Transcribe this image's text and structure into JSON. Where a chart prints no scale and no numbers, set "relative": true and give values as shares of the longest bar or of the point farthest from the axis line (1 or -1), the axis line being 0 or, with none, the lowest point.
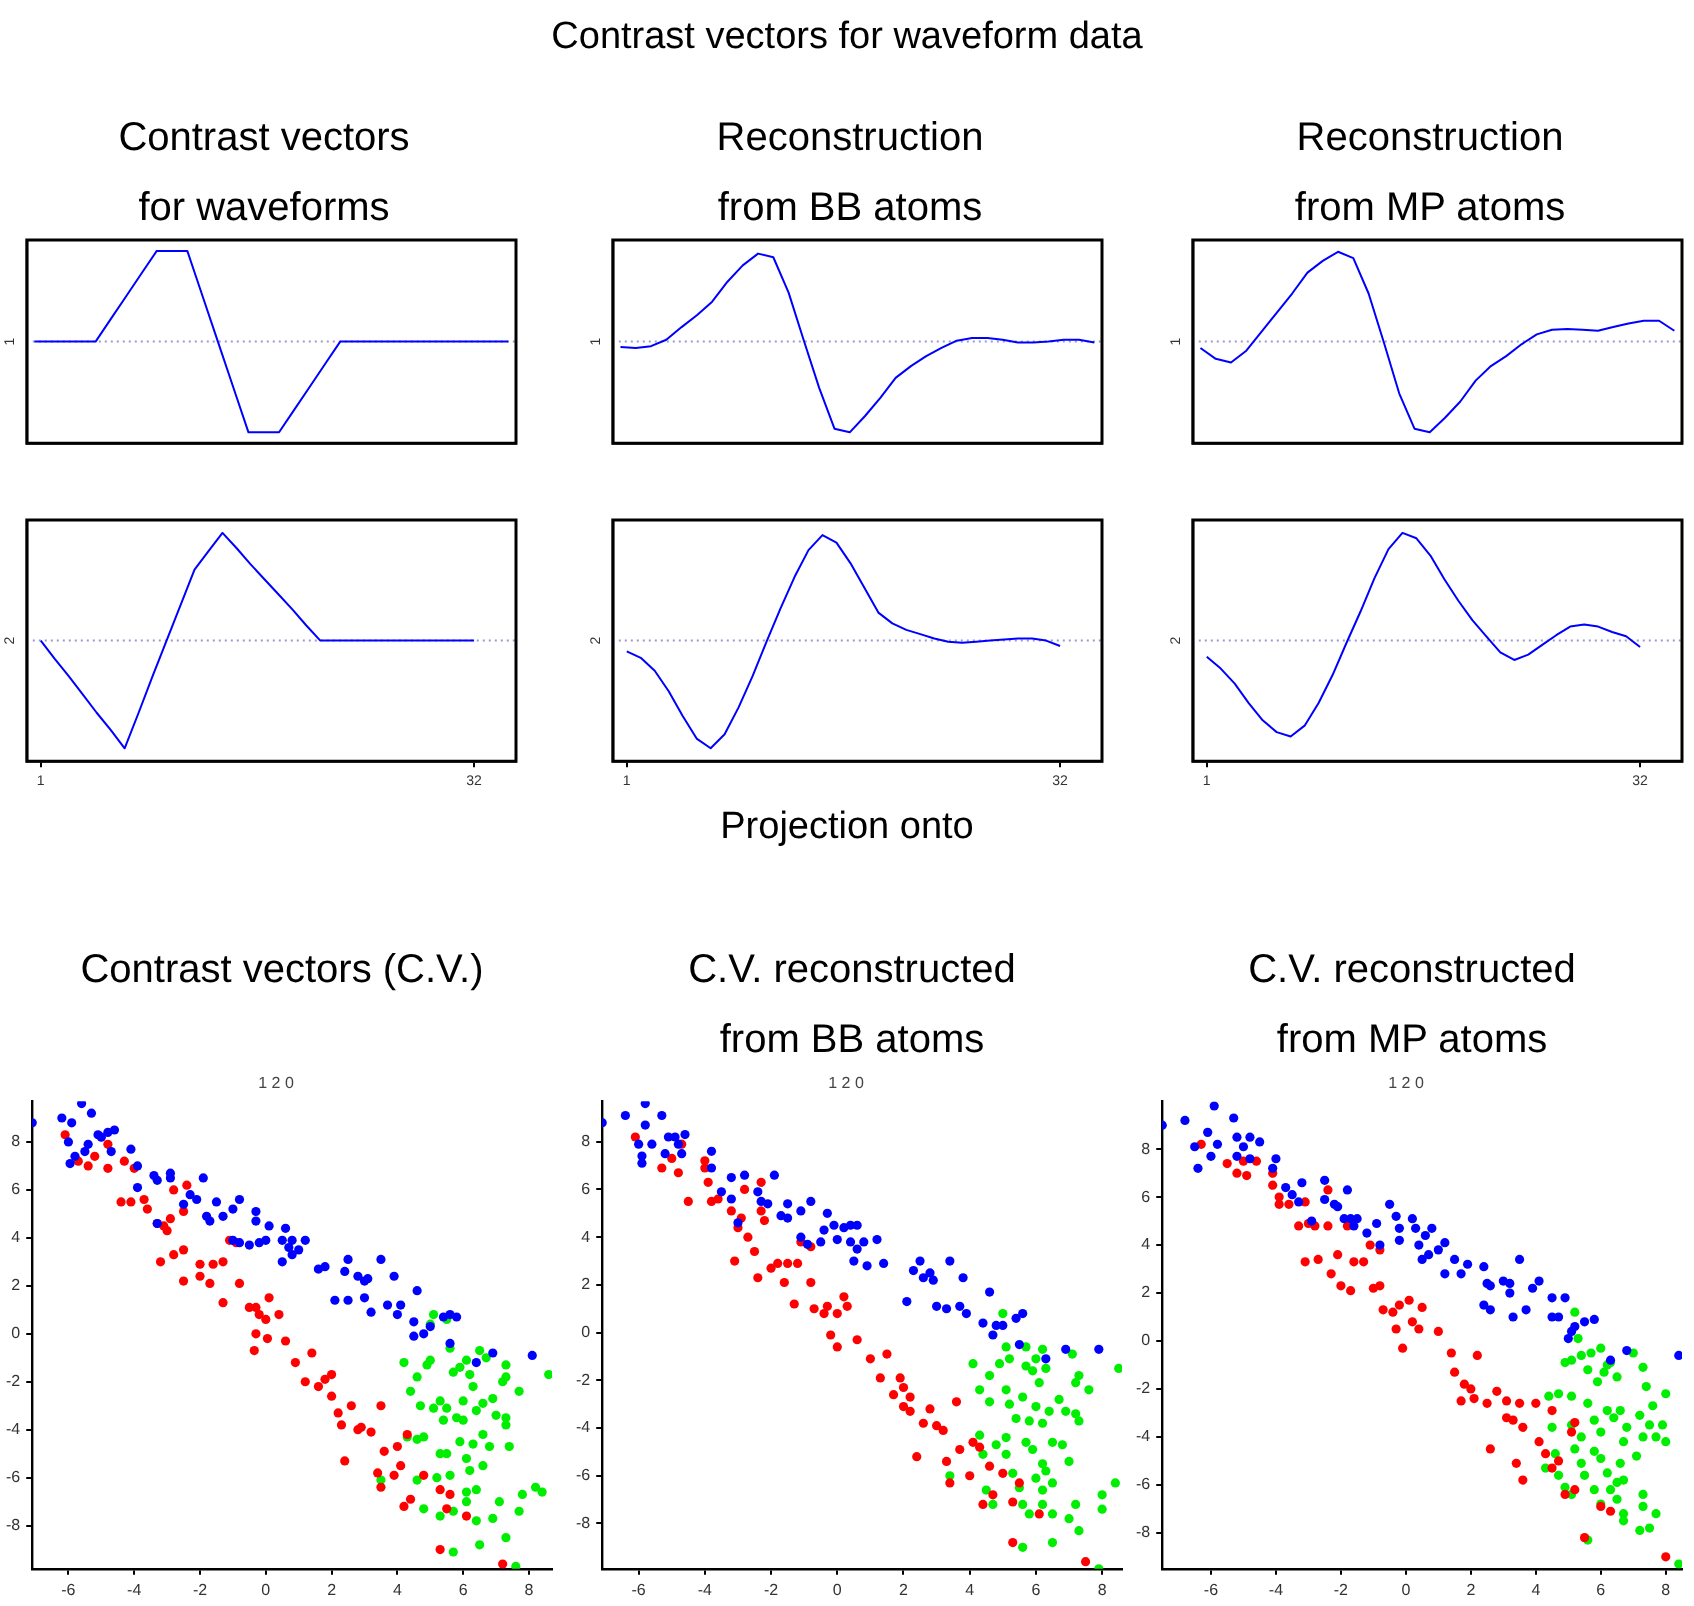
{
  "chart_data": [
    {
      "type": "line",
      "title": "Contrast vectors for waveforms",
      "annotations": [
        "Contrast vectors for waveform data"
      ],
      "ylabel": "1",
      "relative": true,
      "ref_lines": [
        {
          "axis": "y",
          "value": 0,
          "color": "#9a9ad0",
          "line_style": "dotted"
        }
      ],
      "categories": [
        null,
        null,
        null,
        null,
        null,
        null,
        null,
        null,
        null,
        null,
        null,
        null,
        null,
        null,
        null,
        null,
        null,
        null,
        null,
        null,
        null,
        null,
        null,
        null,
        null,
        null,
        null,
        null,
        null,
        null,
        null,
        null
      ],
      "series": [
        {
          "color": "#0000ff",
          "values": [
            0,
            0,
            0,
            0,
            0,
            0.25,
            0.5,
            0.75,
            1,
            1,
            1,
            0.5,
            0,
            -0.5,
            -1,
            -1,
            -1,
            -0.75,
            -0.5,
            -0.25,
            0,
            0,
            0,
            0,
            0,
            0,
            0,
            0,
            0,
            0,
            0,
            0
          ]
        }
      ]
    },
    {
      "type": "line",
      "title": "Reconstruction from BB atoms",
      "ylabel": "1",
      "relative": true,
      "ref_lines": [
        {
          "axis": "y",
          "value": 0,
          "color": "#9a9ad0",
          "line_style": "dotted"
        }
      ],
      "categories": [
        null,
        null,
        null,
        null,
        null,
        null,
        null,
        null,
        null,
        null,
        null,
        null,
        null,
        null,
        null,
        null,
        null,
        null,
        null,
        null,
        null,
        null,
        null,
        null,
        null,
        null,
        null,
        null,
        null,
        null,
        null,
        null
      ],
      "series": [
        {
          "color": "#0000ff",
          "values": [
            -0.06,
            -0.07,
            -0.05,
            0.02,
            0.16,
            0.29,
            0.44,
            0.66,
            0.84,
            0.97,
            0.93,
            0.54,
            0.01,
            -0.51,
            -0.96,
            -1,
            -0.82,
            -0.62,
            -0.4,
            -0.27,
            -0.16,
            -0.07,
            0.01,
            0.04,
            0.04,
            0.02,
            -0.01,
            -0.01,
            0,
            0.02,
            0.02,
            -0.01
          ]
        }
      ]
    },
    {
      "type": "line",
      "title": "Reconstruction from MP atoms",
      "ylabel": "1",
      "relative": true,
      "ref_lines": [
        {
          "axis": "y",
          "value": 0,
          "color": "#9a9ad0",
          "line_style": "dotted"
        }
      ],
      "categories": [
        null,
        null,
        null,
        null,
        null,
        null,
        null,
        null,
        null,
        null,
        null,
        null,
        null,
        null,
        null,
        null,
        null,
        null,
        null,
        null,
        null,
        null,
        null,
        null,
        null,
        null,
        null,
        null,
        null,
        null,
        null,
        null
      ],
      "series": [
        {
          "color": "#0000ff",
          "values": [
            -0.07,
            -0.19,
            -0.23,
            -0.1,
            0.11,
            0.32,
            0.53,
            0.76,
            0.89,
            0.99,
            0.92,
            0.53,
            -0.01,
            -0.57,
            -0.96,
            -1,
            -0.84,
            -0.66,
            -0.43,
            -0.27,
            -0.16,
            -0.03,
            0.08,
            0.13,
            0.14,
            0.13,
            0.12,
            0.16,
            0.2,
            0.23,
            0.23,
            0.12
          ]
        }
      ]
    },
    {
      "type": "line",
      "ylabel": "2",
      "relative": true,
      "tick_labels": "x",
      "xlim": [
        0,
        35
      ],
      "xticks": [
        1,
        32
      ],
      "ref_lines": [
        {
          "axis": "y",
          "value": 0,
          "color": "#9a9ad0",
          "line_style": "dotted"
        }
      ],
      "x": [
        1,
        2,
        3,
        4,
        5,
        6,
        7,
        8,
        9,
        10,
        11,
        12,
        13,
        14,
        15,
        16,
        17,
        18,
        19,
        20,
        21,
        22,
        23,
        24,
        25,
        26,
        27,
        28,
        29,
        30,
        31,
        32
      ],
      "series": [
        {
          "color": "#0000ff",
          "values": [
            0,
            -0.17,
            -0.33,
            -0.5,
            -0.67,
            -0.83,
            -1,
            -0.67,
            -0.33,
            0,
            0.33,
            0.66,
            0.83,
            1,
            0.86,
            0.71,
            0.57,
            0.43,
            0.29,
            0.14,
            0,
            0,
            0,
            0,
            0,
            0,
            0,
            0,
            0,
            0,
            0,
            0
          ]
        }
      ]
    },
    {
      "type": "line",
      "ylabel": "2",
      "relative": true,
      "tick_labels": "x",
      "xlim": [
        0,
        35
      ],
      "xticks": [
        1,
        32
      ],
      "ref_lines": [
        {
          "axis": "y",
          "value": 0,
          "color": "#9a9ad0",
          "line_style": "dotted"
        }
      ],
      "x": [
        1,
        2,
        3,
        4,
        5,
        6,
        7,
        8,
        9,
        10,
        11,
        12,
        13,
        14,
        15,
        16,
        17,
        18,
        19,
        20,
        21,
        22,
        23,
        24,
        25,
        26,
        27,
        28,
        29,
        30,
        31,
        32
      ],
      "series": [
        {
          "color": "#0000ff",
          "values": [
            -0.1,
            -0.16,
            -0.28,
            -0.47,
            -0.7,
            -0.91,
            -1,
            -0.87,
            -0.62,
            -0.33,
            -0.01,
            0.3,
            0.59,
            0.84,
            0.98,
            0.91,
            0.72,
            0.49,
            0.26,
            0.16,
            0.1,
            0.06,
            0.02,
            -0.01,
            -0.02,
            -0.01,
            0,
            0.01,
            0.02,
            0.02,
            0,
            -0.05
          ]
        }
      ]
    },
    {
      "type": "line",
      "ylabel": "2",
      "relative": true,
      "tick_labels": "x",
      "xlim": [
        0,
        35
      ],
      "xticks": [
        1,
        32
      ],
      "ref_lines": [
        {
          "axis": "y",
          "value": 0,
          "color": "#9a9ad0",
          "line_style": "dotted"
        }
      ],
      "x": [
        1,
        2,
        3,
        4,
        5,
        6,
        7,
        8,
        9,
        10,
        11,
        12,
        13,
        14,
        15,
        16,
        17,
        18,
        19,
        20,
        21,
        22,
        23,
        24,
        25,
        26,
        27,
        28,
        29,
        30,
        31,
        32
      ],
      "series": [
        {
          "color": "#0000ff",
          "values": [
            -0.15,
            -0.26,
            -0.4,
            -0.58,
            -0.74,
            -0.85,
            -0.89,
            -0.79,
            -0.58,
            -0.32,
            -0.02,
            0.27,
            0.58,
            0.85,
            1,
            0.95,
            0.79,
            0.57,
            0.37,
            0.19,
            0.04,
            -0.11,
            -0.18,
            -0.13,
            -0.04,
            0.05,
            0.13,
            0.15,
            0.13,
            0.08,
            0.04,
            -0.06
          ]
        }
      ]
    },
    {
      "type": "scatter",
      "title": "Contrast vectors (C.V.)",
      "subtitle": "1 2 0",
      "annotations": [
        "Projection onto"
      ],
      "marker": "circle",
      "xlim": [
        -7.1,
        8.7
      ],
      "ylim": [
        -9.8,
        9.7
      ],
      "xticks": [
        -6,
        -4,
        -2,
        0,
        2,
        4,
        6,
        8
      ],
      "yticks": [
        -8,
        -6,
        -4,
        -2,
        0,
        2,
        4,
        6,
        8
      ],
      "series": [
        {
          "color": "#0000ff",
          "x": [
            -7.1,
            -6.2,
            -5.9,
            -6,
            -5.95,
            -5.8,
            -5.6,
            -5.5,
            -5.4,
            -5.3,
            -5.1,
            -5,
            -4.8,
            -4.6,
            -4.7,
            -4.1,
            -3.9,
            -3.9,
            -3.4,
            -3.3,
            -2.9,
            -2.9,
            -3.3,
            -2.5,
            -2.3,
            -2.1,
            -1.9,
            -1.8,
            -1.7,
            -1.5,
            -1.3,
            -1,
            -0.8,
            -1,
            -0.8,
            -0.5,
            -0.3,
            -0.3,
            -0.2,
            0,
            0.1,
            0.5,
            0.6,
            0.7,
            0.8,
            0.8,
            0.5,
            1,
            1.2,
            1.6,
            1.8,
            2.1,
            2.4,
            2.5,
            2.5,
            2.8,
            3,
            3.1,
            3,
            3.2,
            3.5,
            3.7,
            3.9,
            4,
            4.1,
            4.6,
            4.5,
            4.5,
            4.8,
            5,
            5.4,
            5.6,
            5.8,
            5.6,
            6.4,
            6.9,
            8.1
          ],
          "values": [
            8.8,
            9,
            8.8,
            8,
            7.1,
            7.4,
            9.6,
            7.6,
            7.9,
            9.2,
            8.3,
            8.2,
            8.4,
            8.5,
            7.6,
            7.7,
            7,
            6.1,
            6.6,
            6.4,
            6.7,
            6.5,
            4.6,
            5.4,
            5.8,
            5.6,
            6.5,
            4.9,
            4.7,
            5.5,
            4.9,
            5.2,
            5.6,
            3.9,
            3.8,
            3.7,
            4.7,
            5.1,
            3.8,
            3.9,
            4.5,
            3.9,
            4.4,
            3.6,
            3.9,
            3.3,
            3,
            3.5,
            3.9,
            2.7,
            2.8,
            1.4,
            2.6,
            3.1,
            1.4,
            2.4,
            2.2,
            2.3,
            1.5,
            0.9,
            3.1,
            1.2,
            2.4,
            0.8,
            1.2,
            1.8,
            0.5,
            -0.1,
            0,
            0.3,
            0.7,
            0.8,
            0.7,
            -0.4,
            -1.2,
            -0.8,
            -0.9
          ]
        },
        {
          "color": "#ff0000",
          "x": [
            -6.1,
            -5.7,
            -5.4,
            -5.2,
            -4.8,
            -4.8,
            -4.3,
            -4,
            -4.4,
            -4.1,
            -3.7,
            -3.6,
            -3.3,
            -3.1,
            -2.9,
            -3,
            -2.8,
            -2.4,
            -2.5,
            -2.8,
            -2.5,
            -3.2,
            -2.5,
            -2,
            -2,
            -1.7,
            -1.6,
            -1.3,
            -1.3,
            -1.1,
            -0.8,
            -0.9,
            -0.5,
            -0.3,
            -0.2,
            -0.3,
            -0.35,
            0,
            0.05,
            0.1,
            0.4,
            0.6,
            0.9,
            1.2,
            1.4,
            1.6,
            1.8,
            2,
            2,
            2.2,
            2.3,
            2.4,
            2.6,
            2.8,
            2.9,
            3.2,
            3.4,
            3.5,
            3.5,
            3.6,
            3.9,
            4,
            4.1,
            4.2,
            4.3,
            4.4,
            4.8,
            5.3,
            5.5,
            5.6,
            5.3,
            6.1,
            7.2
          ],
          "values": [
            8.3,
            7.2,
            7,
            7.4,
            7.9,
            6.9,
            7.2,
            6.9,
            5.5,
            5.5,
            5.6,
            5.2,
            4.6,
            4.5,
            4.8,
            4.3,
            6,
            6.2,
            5.1,
            3.3,
            3.5,
            3,
            2.2,
            2.9,
            2.4,
            2.1,
            2.9,
            3,
            1.3,
            3.9,
            2.1,
            3.8,
            1.1,
            1.1,
            0.8,
            0,
            -0.7,
            0.6,
            -0.2,
            1.5,
            0.8,
            -0.3,
            -1.2,
            -2,
            -0.8,
            -2.2,
            -1.9,
            -1.7,
            -2.6,
            -3.3,
            -3.8,
            -5.3,
            -3,
            -4,
            -3.9,
            -4.1,
            -5.8,
            -3,
            -6.4,
            -4.9,
            -5.9,
            -4.7,
            -5.5,
            -7.2,
            -4.2,
            -6.9,
            -5.9,
            -6.5,
            -7.3,
            -6.7,
            -9,
            -7.6,
            -9.6
          ]
        },
        {
          "color": "#00ee00",
          "x": [
            5.1,
            5,
            5.5,
            4.2,
            4.9,
            5,
            5.6,
            5.7,
            5.9,
            6.1,
            6.2,
            6.5,
            6.7,
            7.3,
            7.2,
            7.3,
            7.7,
            8.6,
            4.4,
            4.6,
            4.7,
            5.1,
            5.3,
            5.4,
            5.5,
            5.8,
            6,
            6,
            6.3,
            6.4,
            6.6,
            6.9,
            7,
            7.3,
            7.3,
            4.3,
            4.6,
            4.8,
            5.3,
            5.5,
            5.9,
            6.1,
            6.3,
            6.6,
            6.8,
            7.4,
            3.5,
            4.6,
            5.2,
            5.6,
            6.1,
            6.2,
            6.4,
            6.6,
            4.8,
            5.3,
            5.7,
            6.1,
            6.4,
            6.9,
            7.1,
            7.7,
            8.2,
            8.4,
            7.8,
            7.3,
            6.5,
            5.7,
            7.6
          ],
          "values": [
            0.8,
            0.4,
            0.6,
            -1.2,
            -1.3,
            -1.1,
            -0.6,
            -1.6,
            -1.4,
            -1.1,
            -1.7,
            -0.7,
            -1,
            -1.3,
            -2,
            -1.8,
            -2.4,
            -1.7,
            -2.4,
            -1.8,
            -3,
            -3.1,
            -2.8,
            -3.6,
            -3.1,
            -3.5,
            -3.6,
            -2.8,
            -2.2,
            -3.2,
            -2.9,
            -2.7,
            -3.4,
            -3.5,
            -3.8,
            -4.3,
            -4.4,
            -4.3,
            -5,
            -5,
            -4.5,
            -5.2,
            -4.6,
            -4.2,
            -4.7,
            -4.7,
            -6.1,
            -6.1,
            -6,
            -5.9,
            -6.6,
            -5.7,
            -6.5,
            -5.5,
            -7.3,
            -7.6,
            -7.4,
            -7,
            -7.8,
            -7.7,
            -7,
            -7.4,
            -6.4,
            -6.6,
            -6.7,
            -8.5,
            -8.8,
            -9.1,
            -9.7
          ]
        }
      ]
    },
    {
      "type": "scatter",
      "title": "C.V. reconstructed from BB atoms",
      "subtitle": "1 2 0",
      "marker": "circle",
      "xlim": [
        -7.1,
        8.6
      ],
      "ylim": [
        -9.9,
        9.7
      ],
      "xticks": [
        -6,
        -4,
        -2,
        0,
        2,
        4,
        6,
        8
      ],
      "yticks": [
        -8,
        -6,
        -4,
        -2,
        0,
        2,
        4,
        6,
        8
      ],
      "series": [
        {
          "color": "#0000ff",
          "x": [
            -7.1,
            -6.4,
            -6,
            -5.9,
            -5.9,
            -5.8,
            -5.8,
            -5.6,
            -5.3,
            -5.1,
            -5.2,
            -4.9,
            -4.8,
            -4.6,
            -4.7,
            -3.8,
            -3.8,
            -3.5,
            -3.2,
            -3.2,
            -3,
            -2.8,
            -2.4,
            -2.3,
            -2.1,
            -1.9,
            -1.7,
            -1.5,
            -1.5,
            -1.1,
            -0.8,
            -1.1,
            -0.9,
            -0.5,
            -0.4,
            -0.3,
            -0.1,
            0,
            0.2,
            0.4,
            0.4,
            0.6,
            0.6,
            0.8,
            0.5,
            0.9,
            1.2,
            1.4,
            2.1,
            2.3,
            2.5,
            2.6,
            2.8,
            2.9,
            3,
            3.3,
            3.4,
            3.7,
            3.8,
            3.9,
            4.4,
            4.6,
            4.7,
            4.8,
            5,
            5.4,
            5.6,
            5.5,
            6.3,
            6.9,
            7.9
          ],
          "values": [
            8.8,
            9.1,
            7.9,
            7.4,
            7.1,
            9.6,
            8.7,
            7.9,
            9.1,
            8.2,
            7.5,
            8.2,
            7.9,
            8.3,
            7.5,
            7.6,
            6.9,
            5.9,
            6.5,
            5.6,
            4.6,
            6.6,
            5.9,
            5.5,
            5.4,
            6.6,
            4.9,
            4.8,
            5.4,
            5.1,
            5.5,
            4,
            3.7,
            3.8,
            4.3,
            5,
            4.5,
            3.9,
            4.4,
            3.8,
            4.5,
            4.5,
            3.5,
            3.8,
            3,
            2.8,
            3.9,
            2.9,
            1.3,
            2.6,
            3,
            2.3,
            2.5,
            2.2,
            1.1,
            1,
            3,
            1.1,
            2.3,
            0.8,
            0.4,
            1.7,
            -0.1,
            0.3,
            0.3,
            0.6,
            0.8,
            -0.5,
            -1.1,
            -0.7,
            -0.7
          ]
        },
        {
          "color": "#ff0000",
          "x": [
            -6.1,
            -5.3,
            -5,
            -4.8,
            -4.7,
            -4.5,
            -4,
            -4,
            -3.9,
            -3.8,
            -3.6,
            -3.2,
            -3.1,
            -3,
            -2.9,
            -2.8,
            -2.7,
            -2.5,
            -2.4,
            -2.3,
            -2.3,
            -2.2,
            -2,
            -1.8,
            -1.6,
            -1.5,
            -1.2,
            -1.3,
            -1.1,
            -0.8,
            -0.7,
            -0.8,
            -0.4,
            -0.3,
            -0.2,
            0,
            0,
            0.2,
            0.3,
            0.6,
            1,
            1.3,
            1.5,
            1.7,
            1.9,
            2,
            2,
            2.2,
            2.2,
            2.4,
            2.6,
            2.8,
            3,
            3.2,
            3.3,
            3.4,
            3.6,
            3.7,
            4,
            4.1,
            4.3,
            4.4,
            4.6,
            4.7,
            5,
            5.3,
            5.3,
            5.5,
            6.1,
            7.5
          ],
          "values": [
            8.2,
            6.9,
            7.3,
            6.7,
            7.9,
            5.5,
            7.2,
            6.9,
            6.3,
            5.5,
            5.6,
            5.1,
            3,
            4.4,
            4.8,
            6,
            4,
            3.4,
            2.3,
            6.3,
            5.1,
            4.7,
            2.7,
            2.9,
            2.1,
            2.9,
            2.9,
            1.2,
            3.8,
            2.1,
            1,
            3.6,
            0.8,
            1.1,
            -0.1,
            -0.6,
            0.8,
            1.5,
            1.1,
            -0.3,
            -1.1,
            -1.9,
            -0.9,
            -2.6,
            -1.9,
            -2.3,
            -3.1,
            -2.7,
            -3.3,
            -5.2,
            -3.8,
            -3.2,
            -3.9,
            -4.1,
            -5.4,
            -6.3,
            -2.9,
            -4.9,
            -6,
            -4.6,
            -4.8,
            -7.2,
            -5.6,
            -6.8,
            -5.9,
            -7.1,
            -8.8,
            -6.3,
            -7.6,
            -9.6
          ]
        },
        {
          "color": "#00ee00",
          "x": [
            5,
            5.1,
            5.2,
            4.1,
            4.9,
            5.7,
            5.7,
            5.9,
            6,
            6.2,
            6.3,
            7.1,
            7.3,
            7.2,
            7.6,
            8.5,
            4.3,
            4.6,
            4.6,
            5.1,
            5.2,
            5.4,
            5.6,
            5.8,
            6,
            6.1,
            6.2,
            6.4,
            6.7,
            6.9,
            7.2,
            7.3,
            4.3,
            4.4,
            4.8,
            5.1,
            5.1,
            5.7,
            5.9,
            6.2,
            6.5,
            6.8,
            7,
            3.4,
            4.5,
            5.3,
            5.5,
            6,
            6.2,
            6.3,
            6.5,
            4.7,
            5.6,
            5.8,
            6.2,
            6.5,
            7,
            7.2,
            8,
            8.4,
            8,
            7.3,
            6.5,
            5.6,
            7.9
          ],
          "values": [
            0.8,
            -0.6,
            -1.1,
            -1.3,
            -1.3,
            -0.6,
            -1.4,
            -1.6,
            -1.1,
            -0.7,
            -1.5,
            -0.9,
            -1.8,
            -2.1,
            -2.4,
            -1.5,
            -2.4,
            -1.8,
            -2.9,
            -2.4,
            -3,
            -3.6,
            -2.7,
            -3.7,
            -3.1,
            -2.1,
            -3.8,
            -3.3,
            -2.8,
            -3.3,
            -3.4,
            -3.7,
            -4.3,
            -5.1,
            -4.7,
            -4.4,
            -5.1,
            -4.6,
            -4.9,
            -5.5,
            -4.6,
            -4.7,
            -5.4,
            -6,
            -6.6,
            -5.9,
            -6.5,
            -6.1,
            -6.6,
            -5.8,
            -6.3,
            -7.2,
            -7.2,
            -7.6,
            -7.2,
            -7.6,
            -7.8,
            -7.2,
            -7.4,
            -6.3,
            -6.8,
            -8.3,
            -8.8,
            -9,
            -9.9
          ]
        }
      ]
    },
    {
      "type": "scatter",
      "title": "C.V. reconstructed from MP atoms",
      "subtitle": "1 2 0",
      "marker": "circle",
      "xlim": [
        -7.5,
        8.5
      ],
      "ylim": [
        -9.5,
        10
      ],
      "xticks": [
        -6,
        -4,
        -2,
        0,
        2,
        4,
        6,
        8
      ],
      "yticks": [
        -8,
        -6,
        -4,
        -2,
        0,
        2,
        4,
        6,
        8
      ],
      "series": [
        {
          "color": "#0000ff",
          "x": [
            -7.5,
            -6.8,
            -6.5,
            -6.4,
            -6.1,
            -6,
            -5.9,
            -5.8,
            -5.3,
            -5.2,
            -5.2,
            -5,
            -4.8,
            -4.8,
            -4.5,
            -4.1,
            -4,
            -3.7,
            -3.5,
            -3.3,
            -3.2,
            -2.9,
            -2.5,
            -2.5,
            -2.2,
            -2.1,
            -1.8,
            -1.9,
            -1.7,
            -1.6,
            -1.5,
            -1.2,
            -0.9,
            -0.8,
            -0.5,
            -0.3,
            -0.2,
            -0.2,
            0.2,
            0.3,
            0.4,
            0.6,
            0.7,
            0.8,
            0.5,
            1,
            1.2,
            1.2,
            1.5,
            1.7,
            1.9,
            2.4,
            2.4,
            2.5,
            2.6,
            2.6,
            3,
            3.2,
            3.2,
            3.3,
            3.5,
            3.7,
            3.9,
            4.1,
            4.5,
            4.5,
            4.7,
            4.9,
            5.1,
            5.2,
            5.5,
            5.8,
            5,
            6.3,
            6.8,
            8.4
          ],
          "values": [
            9,
            9.2,
            8.1,
            7.2,
            8.7,
            7.7,
            9.8,
            8.2,
            9.3,
            8.5,
            7.7,
            8.1,
            8.5,
            7.6,
            8.3,
            7.2,
            7.6,
            6.4,
            6.1,
            5.8,
            6.6,
            5,
            6.7,
            5.9,
            5.7,
            5.6,
            6.3,
            5.1,
            5.1,
            4.8,
            5.1,
            4.5,
            4.9,
            4,
            5.7,
            5.2,
            4.7,
            4.2,
            5.1,
            4.7,
            4,
            4.4,
            3.6,
            4.7,
            3.4,
            3.8,
            4.1,
            2.8,
            3.4,
            2.8,
            3.2,
            1.5,
            3.1,
            2.4,
            2.3,
            1.3,
            2.5,
            2.4,
            2,
            1,
            3.4,
            1.3,
            2.2,
            2.5,
            1.8,
            1,
            1,
            1.8,
            0.4,
            0.6,
            0.8,
            0.9,
            0.1,
            -0.8,
            -0.4,
            -0.6
          ]
        },
        {
          "color": "#ff0000",
          "x": [
            -6.3,
            -5.5,
            -5.2,
            -5,
            -4.9,
            -4.6,
            -4.1,
            -4.1,
            -3.9,
            -3.9,
            -3.6,
            -3.3,
            -3.1,
            -3,
            -3.1,
            -2.8,
            -2.7,
            -2.4,
            -2.4,
            -2.3,
            -2.1,
            -2,
            -1.8,
            -1.7,
            -1.6,
            -1.3,
            -1.1,
            -1,
            -0.8,
            -0.8,
            -0.7,
            -0.4,
            -0.3,
            -0.2,
            -0.1,
            0.1,
            0.2,
            0.4,
            0.5,
            1,
            1.4,
            1.5,
            1.7,
            1.8,
            2,
            2.1,
            2.2,
            2.5,
            2.6,
            2.8,
            3.1,
            3.1,
            3.3,
            3.4,
            3.5,
            3.6,
            3.6,
            4,
            4.1,
            4.3,
            4.5,
            4.5,
            4.7,
            4.9,
            5.2,
            5.1,
            5.2,
            5.5,
            6,
            6.3,
            8
          ],
          "values": [
            8.2,
            7.4,
            7,
            7.5,
            6.9,
            7.5,
            7,
            6.5,
            6,
            5.7,
            5.7,
            4.8,
            5.8,
            4.9,
            3.3,
            4.8,
            3.4,
            6.3,
            4.8,
            2.8,
            3.6,
            2.3,
            4.8,
            2.1,
            3.3,
            3.3,
            4,
            2.2,
            2.3,
            3.8,
            1.3,
            1.2,
            0.5,
            1.5,
            -0.3,
            1.7,
            0.8,
            0.5,
            1.4,
            0.4,
            -0.5,
            -1.3,
            -2.5,
            -1.8,
            -2,
            -2.4,
            -0.6,
            -2.6,
            -4.5,
            -2.1,
            -2.5,
            -3.2,
            -3.3,
            -5.1,
            -2.6,
            -3.6,
            -5.8,
            -2.6,
            -4.2,
            -4.7,
            -5.3,
            -2.9,
            -5,
            -6.4,
            -3.4,
            -3.8,
            -6.2,
            -8.2,
            -6.9,
            -7.1,
            -9
          ]
        },
        {
          "color": "#00ee00",
          "x": [
            5.2,
            5.3,
            4.9,
            5.1,
            5.4,
            5.7,
            6,
            6.2,
            6.3,
            7,
            5.6,
            5.9,
            6.1,
            6.5,
            7.3,
            7.4,
            7.6,
            8,
            4.4,
            4.7,
            4.5,
            5.1,
            5.1,
            5.4,
            5.6,
            5.8,
            6,
            6.2,
            6.4,
            6.6,
            6.8,
            7.2,
            7.5,
            7.9,
            7.7,
            8,
            4.6,
            5.2,
            5.4,
            5.8,
            6,
            6.2,
            6.6,
            6.7,
            7.1,
            7.3,
            4.3,
            4.7,
            4.9,
            5.5,
            5.8,
            6.3,
            6.5,
            6.7,
            5.1,
            6,
            6.5,
            6.7,
            6.7,
            7.3,
            7.3,
            7.2,
            7.5,
            7.7,
            5.6,
            8.4
          ],
          "values": [
            1.2,
            0.1,
            -0.9,
            -0.8,
            -0.6,
            -0.5,
            -0.3,
            -1,
            -0.9,
            -0.5,
            -1.2,
            -1.7,
            -1.3,
            -1.5,
            -1.1,
            -1.9,
            -2.7,
            -2.2,
            -2.3,
            -2.2,
            -3.6,
            -2.3,
            -3.5,
            -4,
            -2.6,
            -3.3,
            -3.8,
            -2.9,
            -3.2,
            -2.9,
            -3.6,
            -3.1,
            -3.5,
            -3.5,
            -4,
            -4.2,
            -4.7,
            -4.5,
            -5.1,
            -4.6,
            -4.9,
            -5.5,
            -5.1,
            -4.2,
            -4.8,
            -4,
            -5.3,
            -5.6,
            -6.1,
            -5.6,
            -6.2,
            -6.2,
            -5.9,
            -5.8,
            -6.4,
            -6.8,
            -6.6,
            -7.2,
            -7.5,
            -6.9,
            -6.4,
            -7.9,
            -7.8,
            -7.2,
            -8.3,
            -9.3
          ]
        }
      ]
    }
  ]
}
